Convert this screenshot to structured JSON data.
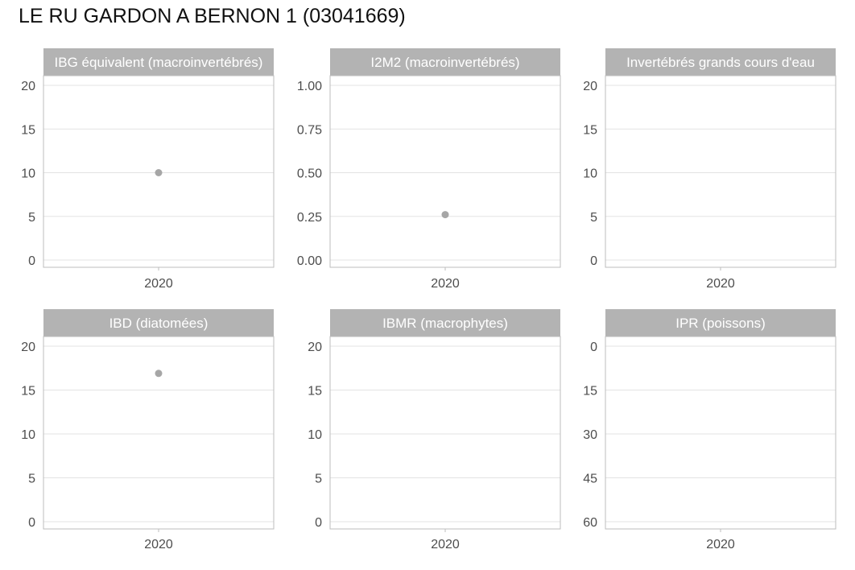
{
  "title": "LE RU GARDON A BERNON 1 (03041669)",
  "colors": {
    "strip": "#b3b3b3",
    "strip_text": "#ffffff",
    "point": "#a6a6a6",
    "grid": "#e3e3e3",
    "frame": "#bdbdbd",
    "tick_text": "#4d4d4d"
  },
  "chart_data": [
    {
      "type": "scatter",
      "title": "IBG équivalent (macroinvertébrés)",
      "categories": [
        "2020"
      ],
      "ylim": [
        0,
        20
      ],
      "yticks": [
        0,
        5,
        10,
        15,
        20
      ],
      "ytick_labels": [
        "0",
        "5",
        "10",
        "15",
        "20"
      ],
      "y_reversed": false,
      "grid": true,
      "points": [
        {
          "x": "2020",
          "y": 10
        }
      ]
    },
    {
      "type": "scatter",
      "title": "I2M2 (macroinvertébrés)",
      "categories": [
        "2020"
      ],
      "ylim": [
        0,
        1
      ],
      "yticks": [
        0,
        0.25,
        0.5,
        0.75,
        1
      ],
      "ytick_labels": [
        "0.00",
        "0.25",
        "0.50",
        "0.75",
        "1.00"
      ],
      "y_reversed": false,
      "grid": true,
      "points": [
        {
          "x": "2020",
          "y": 0.26
        }
      ]
    },
    {
      "type": "scatter",
      "title": "Invertébrés grands cours d'eau",
      "categories": [
        "2020"
      ],
      "ylim": [
        0,
        20
      ],
      "yticks": [
        0,
        5,
        10,
        15,
        20
      ],
      "ytick_labels": [
        "0",
        "5",
        "10",
        "15",
        "20"
      ],
      "y_reversed": false,
      "grid": true,
      "points": []
    },
    {
      "type": "scatter",
      "title": "IBD (diatomées)",
      "categories": [
        "2020"
      ],
      "ylim": [
        0,
        20
      ],
      "yticks": [
        0,
        5,
        10,
        15,
        20
      ],
      "ytick_labels": [
        "0",
        "5",
        "10",
        "15",
        "20"
      ],
      "y_reversed": false,
      "grid": true,
      "points": [
        {
          "x": "2020",
          "y": 16.9
        }
      ]
    },
    {
      "type": "scatter",
      "title": "IBMR (macrophytes)",
      "categories": [
        "2020"
      ],
      "ylim": [
        0,
        20
      ],
      "yticks": [
        0,
        5,
        10,
        15,
        20
      ],
      "ytick_labels": [
        "0",
        "5",
        "10",
        "15",
        "20"
      ],
      "y_reversed": false,
      "grid": true,
      "points": []
    },
    {
      "type": "scatter",
      "title": "IPR (poissons)",
      "categories": [
        "2020"
      ],
      "ylim": [
        0,
        60
      ],
      "yticks": [
        0,
        15,
        30,
        45,
        60
      ],
      "ytick_labels": [
        "0",
        "15",
        "30",
        "45",
        "60"
      ],
      "y_reversed": true,
      "grid": true,
      "points": []
    }
  ]
}
